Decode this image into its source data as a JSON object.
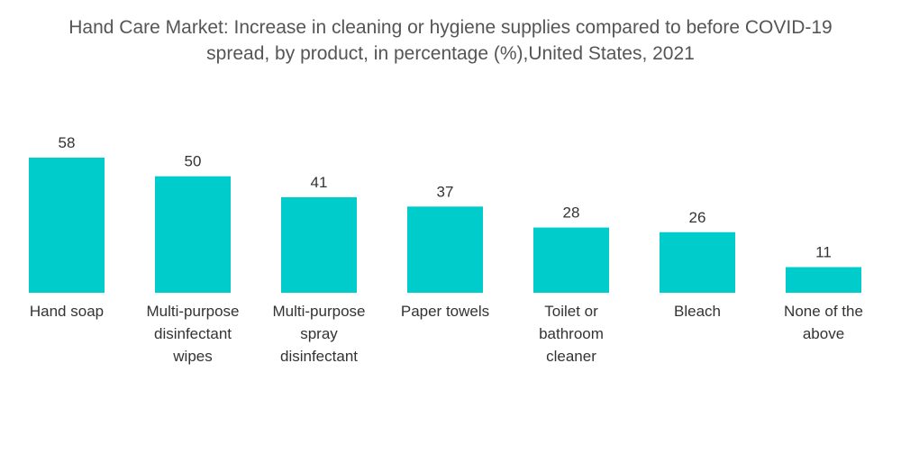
{
  "title": {
    "line1": "Hand Care Market: Increase in cleaning or hygiene supplies compared to before COVID-19",
    "line2": "spread, by product, in percentage (%),United States, 2021"
  },
  "colors": {
    "bar": "#00CCCC",
    "text": "#333333",
    "title": "#555555"
  },
  "chart_data": {
    "type": "bar",
    "title": "Hand Care Market: Increase in cleaning or hygiene supplies compared to before COVID-19 spread, by product, in percentage (%),United States, 2021",
    "categories": [
      [
        "Hand soap"
      ],
      [
        "Multi-purpose",
        "disinfectant",
        "wipes"
      ],
      [
        "Multi-purpose",
        "spray",
        "disinfectant"
      ],
      [
        "Paper towels"
      ],
      [
        "Toilet or",
        "bathroom",
        "cleaner"
      ],
      [
        "Bleach"
      ],
      [
        "None of the",
        "above"
      ]
    ],
    "values": [
      58,
      50,
      41,
      37,
      28,
      26,
      11
    ],
    "xlabel": "",
    "ylabel": "",
    "ylim": [
      0,
      58
    ],
    "grid": false,
    "legend": "none",
    "data_labels": true
  }
}
